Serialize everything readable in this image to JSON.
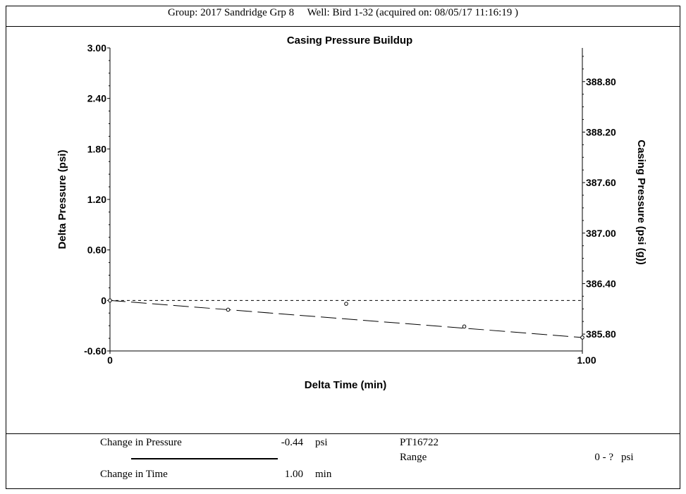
{
  "header": {
    "group_label": "Group: 2017 Sandridge Grp 8",
    "well_label": "Well: Bird 1-32 (acquired on: 08/05/17 11:16:19 )"
  },
  "chart_data": {
    "type": "scatter",
    "title": "Casing Pressure Buildup",
    "xlabel": "Delta Time (min)",
    "ylabel": "Delta Pressure (psi)",
    "y2label": "Casing Pressure (psi (g))",
    "xlim": [
      0,
      1.0
    ],
    "ylim": [
      -0.6,
      3.0
    ],
    "y2lim": [
      385.6,
      389.2
    ],
    "x_ticks": [
      {
        "value": 0,
        "label": "0"
      },
      {
        "value": 1.0,
        "label": "1.00"
      }
    ],
    "y_ticks": [
      {
        "value": 3.0,
        "label": "3.00"
      },
      {
        "value": 2.4,
        "label": "2.40"
      },
      {
        "value": 1.8,
        "label": "1.80"
      },
      {
        "value": 1.2,
        "label": "1.20"
      },
      {
        "value": 0.6,
        "label": "0.60"
      },
      {
        "value": 0,
        "label": "0"
      },
      {
        "value": -0.6,
        "label": "-0.60"
      }
    ],
    "y2_ticks": [
      {
        "value": 388.8,
        "label": "388.80"
      },
      {
        "value": 388.2,
        "label": "388.20"
      },
      {
        "value": 387.6,
        "label": "387.60"
      },
      {
        "value": 387.0,
        "label": "387.00"
      },
      {
        "value": 386.4,
        "label": "386.40"
      },
      {
        "value": 385.8,
        "label": "385.80"
      }
    ],
    "points": [
      {
        "x": 0.0,
        "y": 0.0
      },
      {
        "x": 0.25,
        "y": -0.11
      },
      {
        "x": 0.5,
        "y": -0.04
      },
      {
        "x": 0.75,
        "y": -0.31
      },
      {
        "x": 1.0,
        "y": -0.44
      }
    ],
    "trend_line": {
      "x": [
        0.0,
        1.0
      ],
      "y": [
        0.0,
        -0.44
      ],
      "style": "long-dash"
    },
    "reference_line": {
      "y": 0,
      "style": "short-dash"
    },
    "grid": false
  },
  "footer": {
    "change_pressure_label": "Change in Pressure",
    "change_pressure_value": "-0.44",
    "change_pressure_unit": "psi",
    "change_time_label": "Change in Time",
    "change_time_value": "1.00",
    "change_time_unit": "min",
    "sensor_id": "PT16722",
    "range_label": "Range",
    "range_value": "0 - ?",
    "range_unit": "psi"
  }
}
